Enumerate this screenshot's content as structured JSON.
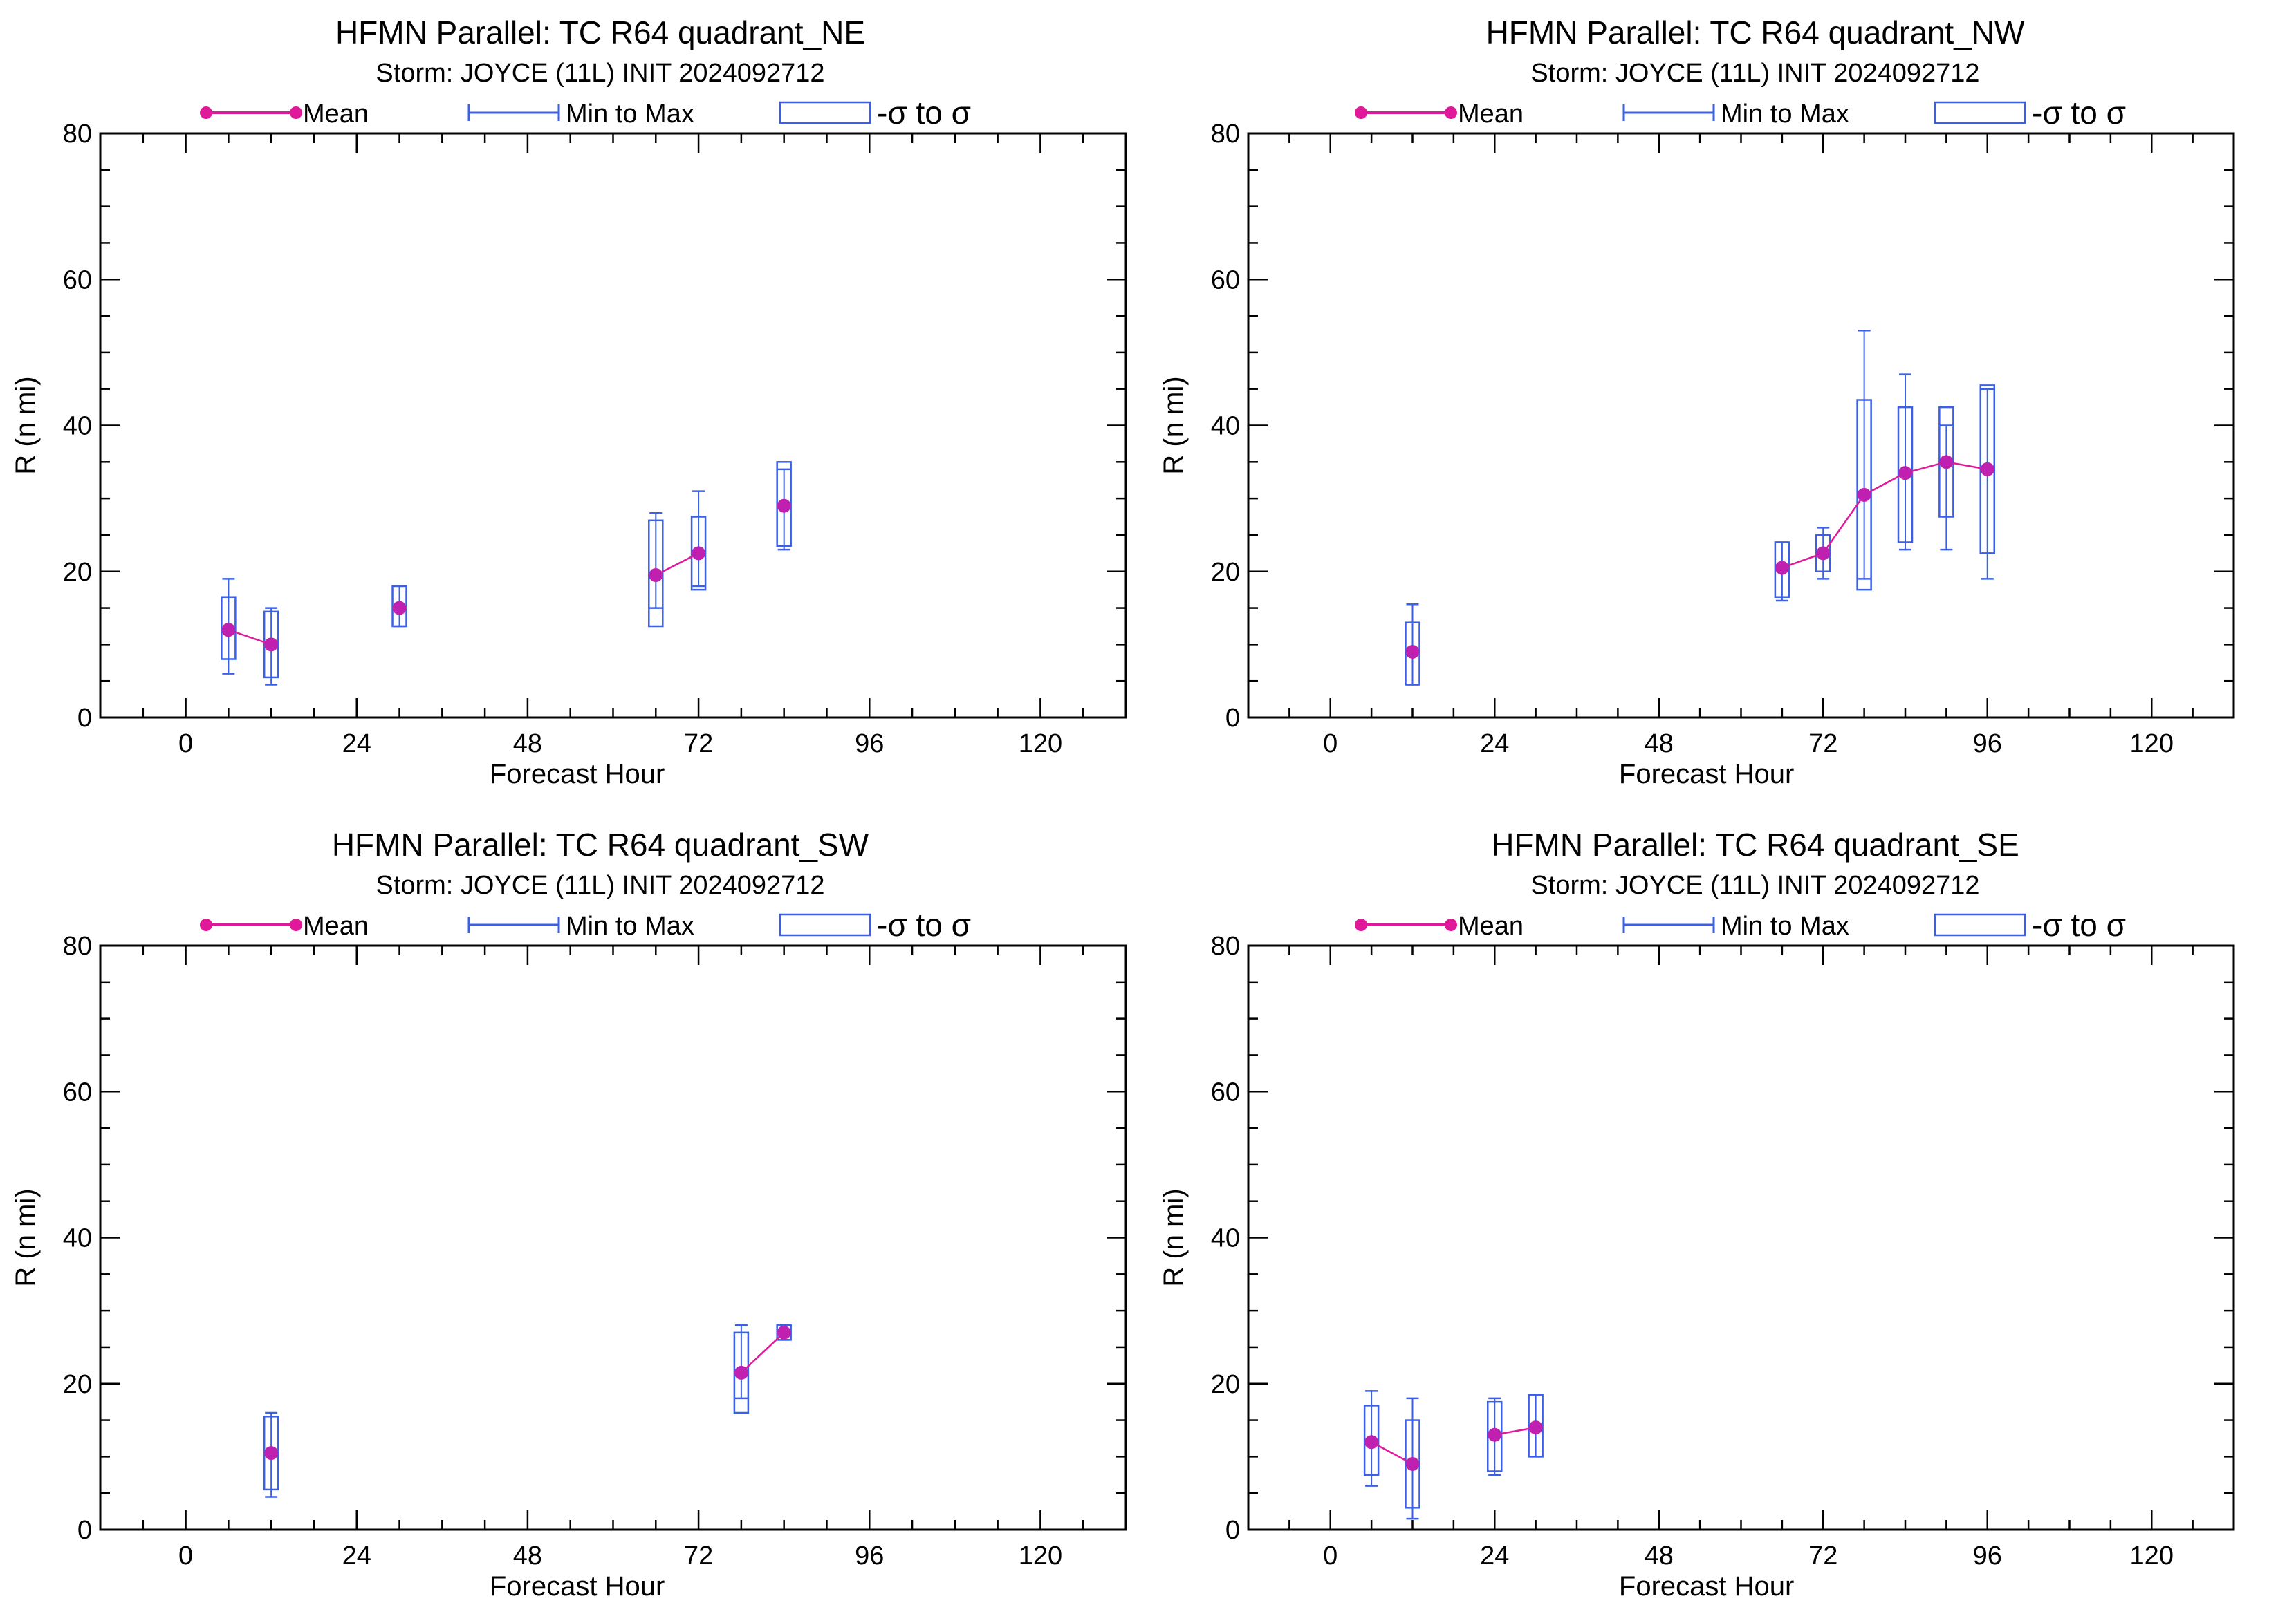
{
  "colors": {
    "mean": "#e0189a",
    "mean_marker": "#c020b0",
    "range": "#3b5fe6",
    "axis": "#000000"
  },
  "legend": {
    "mean_label": "Mean",
    "range_label": "Min to Max",
    "sigma_label": "-σ to σ"
  },
  "chart_data": [
    {
      "type": "box",
      "title": "HFMN Parallel: TC  R64 quadrant_NE",
      "subtitle": "Storm: JOYCE (11L) INIT 2024092712",
      "xlabel": "Forecast Hour",
      "ylabel": "R (n mi)",
      "xlim": [
        -12,
        132
      ],
      "ylim": [
        0,
        80
      ],
      "xticks": [
        0,
        24,
        48,
        72,
        96,
        120
      ],
      "yticks": [
        0,
        20,
        40,
        60,
        80
      ],
      "grid": false,
      "legend_position": "top",
      "points": [
        {
          "x": 6,
          "mean": 12,
          "min": 6,
          "max": 19,
          "sd_low": 8,
          "sd_high": 16.5
        },
        {
          "x": 12,
          "mean": 10,
          "min": 4.5,
          "max": 15,
          "sd_low": 5.5,
          "sd_high": 14.5
        },
        {
          "x": 30,
          "mean": 15,
          "min": 12.5,
          "max": 18,
          "sd_low": 12.5,
          "sd_high": 18
        },
        {
          "x": 66,
          "mean": 19.5,
          "min": 15,
          "max": 28,
          "sd_low": 12.5,
          "sd_high": 27
        },
        {
          "x": 72,
          "mean": 22.5,
          "min": 18,
          "max": 31,
          "sd_low": 17.5,
          "sd_high": 27.5
        },
        {
          "x": 84,
          "mean": 29,
          "min": 23,
          "max": 34,
          "sd_low": 23.5,
          "sd_high": 35
        }
      ]
    },
    {
      "type": "box",
      "title": "HFMN Parallel: TC  R64 quadrant_NW",
      "subtitle": "Storm: JOYCE (11L) INIT 2024092712",
      "xlabel": "Forecast Hour",
      "ylabel": "R (n mi)",
      "xlim": [
        -12,
        132
      ],
      "ylim": [
        0,
        80
      ],
      "xticks": [
        0,
        24,
        48,
        72,
        96,
        120
      ],
      "yticks": [
        0,
        20,
        40,
        60,
        80
      ],
      "grid": false,
      "legend_position": "top",
      "points": [
        {
          "x": 12,
          "mean": 9,
          "min": 4.5,
          "max": 15.5,
          "sd_low": 4.5,
          "sd_high": 13
        },
        {
          "x": 66,
          "mean": 20.5,
          "min": 16,
          "max": 24,
          "sd_low": 16.5,
          "sd_high": 24
        },
        {
          "x": 72,
          "mean": 22.5,
          "min": 19,
          "max": 26,
          "sd_low": 20,
          "sd_high": 25
        },
        {
          "x": 78,
          "mean": 30.5,
          "min": 19,
          "max": 53,
          "sd_low": 17.5,
          "sd_high": 43.5
        },
        {
          "x": 84,
          "mean": 33.5,
          "min": 23,
          "max": 47,
          "sd_low": 24,
          "sd_high": 42.5
        },
        {
          "x": 90,
          "mean": 35,
          "min": 23,
          "max": 40,
          "sd_low": 27.5,
          "sd_high": 42.5
        },
        {
          "x": 96,
          "mean": 34,
          "min": 19,
          "max": 45,
          "sd_low": 22.5,
          "sd_high": 45.5
        }
      ]
    },
    {
      "type": "box",
      "title": "HFMN Parallel: TC  R64 quadrant_SW",
      "subtitle": "Storm: JOYCE (11L) INIT 2024092712",
      "xlabel": "Forecast Hour",
      "ylabel": "R (n mi)",
      "xlim": [
        -12,
        132
      ],
      "ylim": [
        0,
        80
      ],
      "xticks": [
        0,
        24,
        48,
        72,
        96,
        120
      ],
      "yticks": [
        0,
        20,
        40,
        60,
        80
      ],
      "grid": false,
      "legend_position": "top",
      "points": [
        {
          "x": 12,
          "mean": 10.5,
          "min": 4.5,
          "max": 16,
          "sd_low": 5.5,
          "sd_high": 15.5
        },
        {
          "x": 78,
          "mean": 21.5,
          "min": 18,
          "max": 28,
          "sd_low": 16,
          "sd_high": 27
        },
        {
          "x": 84,
          "mean": 27,
          "min": 26,
          "max": 28,
          "sd_low": 26,
          "sd_high": 28
        }
      ]
    },
    {
      "type": "box",
      "title": "HFMN Parallel: TC  R64 quadrant_SE",
      "subtitle": "Storm: JOYCE (11L) INIT 2024092712",
      "xlabel": "Forecast Hour",
      "ylabel": "R (n mi)",
      "xlim": [
        -12,
        132
      ],
      "ylim": [
        0,
        80
      ],
      "xticks": [
        0,
        24,
        48,
        72,
        96,
        120
      ],
      "yticks": [
        0,
        20,
        40,
        60,
        80
      ],
      "grid": false,
      "legend_position": "top",
      "points": [
        {
          "x": 6,
          "mean": 12,
          "min": 6,
          "max": 19,
          "sd_low": 7.5,
          "sd_high": 17
        },
        {
          "x": 12,
          "mean": 9,
          "min": 1.5,
          "max": 18,
          "sd_low": 3,
          "sd_high": 15
        },
        {
          "x": 24,
          "mean": 13,
          "min": 7.5,
          "max": 18,
          "sd_low": 8,
          "sd_high": 17.5
        },
        {
          "x": 30,
          "mean": 14,
          "min": 10,
          "max": 18.5,
          "sd_low": 10,
          "sd_high": 18.5
        }
      ]
    }
  ]
}
